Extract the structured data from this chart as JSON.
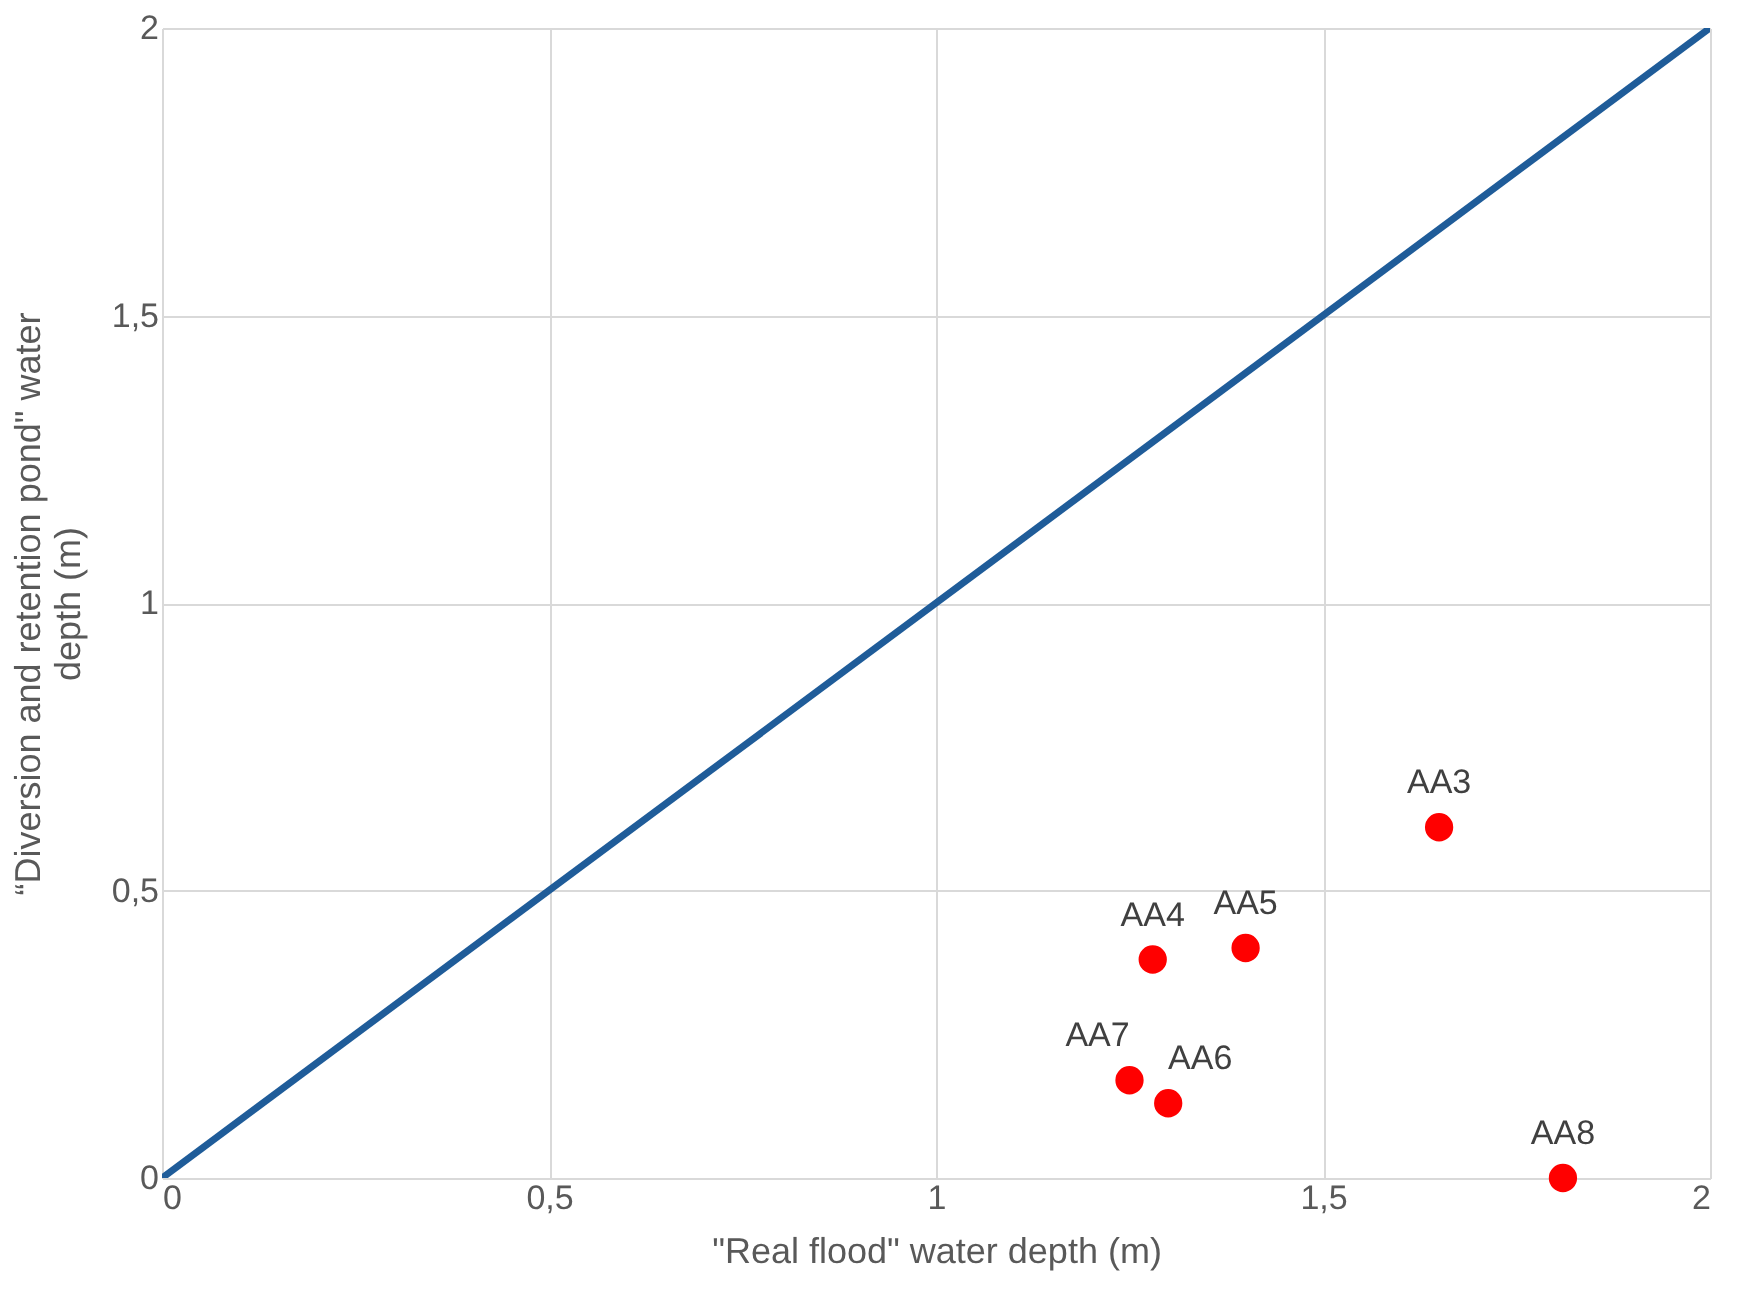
{
  "chart_data": {
    "type": "scatter",
    "xlabel": "\"Real flood\" water depth (m)",
    "ylabel": "“Diversion and retention pond\" water depth (m)",
    "xlim": [
      0,
      2
    ],
    "ylim": [
      0,
      2
    ],
    "xticks": [
      0,
      {
        "value": 0.5,
        "label": "0,5"
      },
      1,
      {
        "value": 1.5,
        "label": "1,5"
      },
      2
    ],
    "yticks": [
      0,
      {
        "value": 0.5,
        "label": "0,5"
      },
      1,
      {
        "value": 1.5,
        "label": "1,5"
      },
      2
    ],
    "grid": true,
    "series": [
      {
        "type": "line",
        "color": "#1f5c99",
        "x": [
          0,
          2
        ],
        "values": [
          0,
          2
        ]
      },
      {
        "marker": "circle",
        "color": "#ff0000",
        "x": [
          1.65,
          1.28,
          1.4,
          1.25,
          1.3,
          1.81
        ],
        "values": [
          0.61,
          0.38,
          0.4,
          0.17,
          0.13,
          0.0
        ]
      }
    ],
    "annotations": [
      {
        "text": "AA3",
        "x": 1.65,
        "y": 0.61
      },
      {
        "text": "AA4",
        "x": 1.28,
        "y": 0.38
      },
      {
        "text": "AA5",
        "x": 1.4,
        "y": 0.4
      },
      {
        "text": "AA7",
        "x": 1.25,
        "y": 0.17
      },
      {
        "text": "AA6",
        "x": 1.3,
        "y": 0.13
      },
      {
        "text": "AA8",
        "x": 1.81,
        "y": 0.0
      }
    ]
  }
}
